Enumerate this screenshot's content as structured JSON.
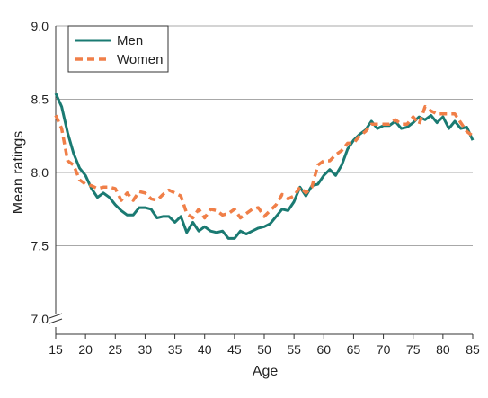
{
  "chart_data": {
    "type": "line",
    "xlabel": "Age",
    "ylabel": "Mean ratings",
    "xlim": [
      15,
      85
    ],
    "ylim": [
      7.0,
      9.0
    ],
    "x_ticks": [
      15,
      20,
      25,
      30,
      35,
      40,
      45,
      50,
      55,
      60,
      65,
      70,
      75,
      80,
      85
    ],
    "y_ticks": [
      "7.0",
      "7.5",
      "8.0",
      "8.5",
      "9.0"
    ],
    "y_tick_values": [
      7.0,
      7.5,
      8.0,
      8.5,
      9.0
    ],
    "grid": "horizontal",
    "axis_break": true,
    "legend": "top-left",
    "x": [
      15,
      16,
      17,
      18,
      19,
      20,
      21,
      22,
      23,
      24,
      25,
      26,
      27,
      28,
      29,
      30,
      31,
      32,
      33,
      34,
      35,
      36,
      37,
      38,
      39,
      40,
      41,
      42,
      43,
      44,
      45,
      46,
      47,
      48,
      49,
      50,
      51,
      52,
      53,
      54,
      55,
      56,
      57,
      58,
      59,
      60,
      61,
      62,
      63,
      64,
      65,
      66,
      67,
      68,
      69,
      70,
      71,
      72,
      73,
      74,
      75,
      76,
      77,
      78,
      79,
      80,
      81,
      82,
      83,
      84,
      85
    ],
    "series": [
      {
        "name": "Men",
        "color": "#1a7a72",
        "style": "solid",
        "values": [
          8.54,
          8.45,
          8.27,
          8.13,
          8.03,
          7.98,
          7.89,
          7.83,
          7.86,
          7.83,
          7.78,
          7.74,
          7.71,
          7.71,
          7.76,
          7.76,
          7.75,
          7.69,
          7.7,
          7.7,
          7.66,
          7.7,
          7.59,
          7.66,
          7.6,
          7.63,
          7.6,
          7.59,
          7.6,
          7.55,
          7.55,
          7.6,
          7.58,
          7.6,
          7.62,
          7.63,
          7.65,
          7.7,
          7.75,
          7.74,
          7.8,
          7.9,
          7.84,
          7.91,
          7.92,
          7.98,
          8.02,
          7.98,
          8.05,
          8.16,
          8.22,
          8.26,
          8.29,
          8.35,
          8.3,
          8.32,
          8.32,
          8.35,
          8.3,
          8.31,
          8.34,
          8.38,
          8.36,
          8.39,
          8.34,
          8.38,
          8.3,
          8.35,
          8.3,
          8.31,
          8.22
        ]
      },
      {
        "name": "Women",
        "color": "#f07f48",
        "style": "dashed",
        "values": [
          8.39,
          8.3,
          8.08,
          8.05,
          7.95,
          7.92,
          7.91,
          7.89,
          7.9,
          7.9,
          7.89,
          7.81,
          7.86,
          7.81,
          7.87,
          7.86,
          7.82,
          7.81,
          7.85,
          7.88,
          7.86,
          7.84,
          7.72,
          7.69,
          7.75,
          7.69,
          7.75,
          7.74,
          7.71,
          7.72,
          7.75,
          7.69,
          7.72,
          7.75,
          7.76,
          7.7,
          7.74,
          7.78,
          7.85,
          7.82,
          7.84,
          7.9,
          7.86,
          7.9,
          8.05,
          8.08,
          8.08,
          8.12,
          8.15,
          8.2,
          8.2,
          8.25,
          8.28,
          8.33,
          8.33,
          8.33,
          8.33,
          8.36,
          8.33,
          8.33,
          8.38,
          8.33,
          8.45,
          8.42,
          8.4,
          8.4,
          8.4,
          8.4,
          8.34,
          8.28,
          8.25
        ]
      }
    ]
  }
}
